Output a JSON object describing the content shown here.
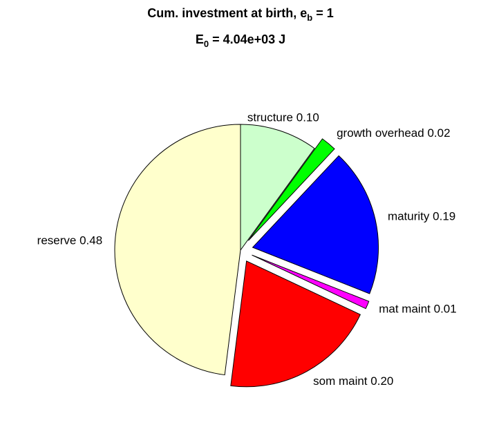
{
  "chart_data": {
    "type": "pie",
    "title_lines": [
      [
        "Cum. investment at birth, e",
        "b",
        " = 1"
      ],
      [
        "E",
        "0",
        " = 4.04e+03 J"
      ]
    ],
    "categories": [
      "structure",
      "growth overhead",
      "maturity",
      "mat maint",
      "som maint",
      "reserve"
    ],
    "values": [
      0.1,
      0.02,
      0.19,
      0.01,
      0.2,
      0.48
    ],
    "value_labels": [
      "0.10",
      "0.02",
      "0.19",
      "0.01",
      "0.20",
      "0.48"
    ],
    "colors": [
      "#ccffcc",
      "#00ff00",
      "#0000ff",
      "#ff00ff",
      "#ff0000",
      "#ffffcc"
    ],
    "explode": [
      false,
      true,
      true,
      true,
      true,
      false
    ]
  }
}
